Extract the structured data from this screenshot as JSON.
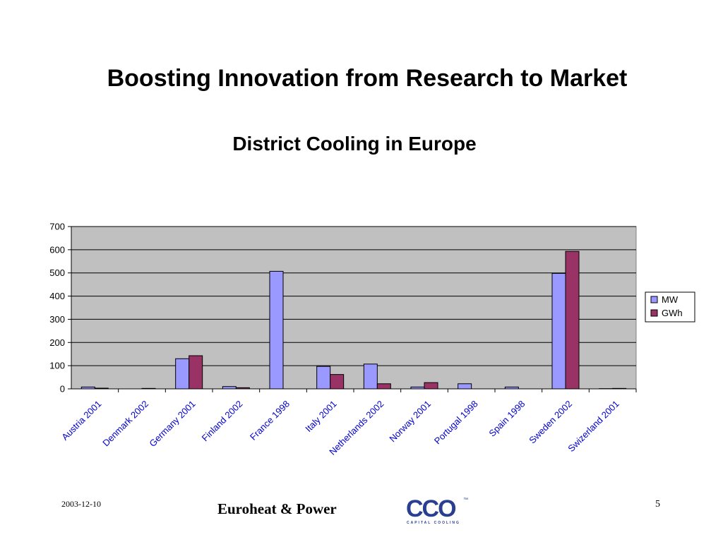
{
  "slide": {
    "title": "Boosting Innovation from Research to Market"
  },
  "footer": {
    "date": "2003-12-10",
    "organization": "Euroheat & Power",
    "page_number": "5",
    "logo_text": "CCO",
    "logo_subtitle": "CAPITAL COOLING",
    "logo_mark": "™"
  },
  "colors": {
    "plot_background": "#c0c0c0",
    "mw": "#9999ff",
    "gwh": "#993366"
  },
  "chart_data": {
    "type": "bar",
    "title": "District Cooling in Europe",
    "xlabel": "",
    "ylabel": "",
    "ylim": [
      0,
      700
    ],
    "yticks": [
      0,
      100,
      200,
      300,
      400,
      500,
      600,
      700
    ],
    "grid": true,
    "legend_position": "right",
    "categories": [
      "Austria 2001",
      "Denmark 2002",
      "Germany 2001",
      "Finland 2002",
      "France 1998",
      "Italy 2001",
      "Netherlands 2002",
      "Norway 2001",
      "Portugal 1998",
      "Spain 1998",
      "Sweden 2002",
      "Swizerland 2001"
    ],
    "series": [
      {
        "name": "MW",
        "values": [
          8,
          0,
          130,
          10,
          507,
          97,
          107,
          8,
          22,
          8,
          498,
          1
        ]
      },
      {
        "name": "GWh",
        "values": [
          3,
          2,
          143,
          5,
          0,
          62,
          22,
          27,
          0,
          0,
          593,
          2
        ]
      }
    ]
  }
}
